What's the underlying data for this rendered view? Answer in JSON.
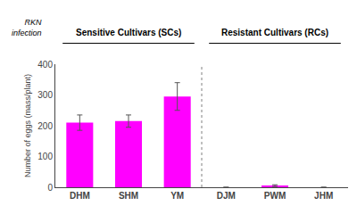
{
  "chart_data": {
    "type": "bar",
    "categories": [
      "DHM",
      "SHM",
      "YM",
      "DJM",
      "PWM",
      "JHM"
    ],
    "values": [
      210,
      215,
      295,
      0,
      5,
      0
    ],
    "errors": [
      25,
      20,
      45,
      0,
      3,
      0
    ],
    "color": "#FF00FF",
    "ylabel": "Number of eggs (mass/plant)",
    "ylim": [
      0,
      400
    ],
    "yticks": [
      0,
      100,
      200,
      300,
      400
    ],
    "annotations": [
      "Sensitive Cultivars (SCs)",
      "Resistant Cultivars (RCs)",
      "RKN\ninfection"
    ],
    "grid": false
  }
}
